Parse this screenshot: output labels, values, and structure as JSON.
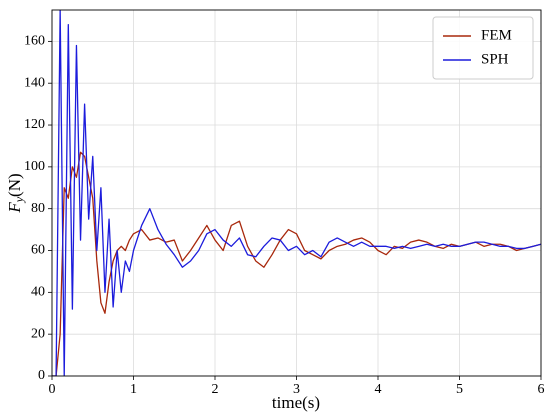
{
  "chart_data": {
    "type": "line",
    "x_label": "time(s)",
    "y_label": {
      "symbol": "F",
      "subscript": "y",
      "unit": "(N)"
    },
    "x": [
      0,
      0.05,
      0.1,
      0.15,
      0.2,
      0.25,
      0.3,
      0.35,
      0.4,
      0.45,
      0.5,
      0.55,
      0.6,
      0.65,
      0.7,
      0.75,
      0.8,
      0.85,
      0.9,
      0.95,
      1.0,
      1.1,
      1.2,
      1.3,
      1.4,
      1.5,
      1.6,
      1.7,
      1.8,
      1.9,
      2.0,
      2.1,
      2.2,
      2.3,
      2.4,
      2.5,
      2.6,
      2.7,
      2.8,
      2.9,
      3.0,
      3.1,
      3.2,
      3.3,
      3.4,
      3.5,
      3.6,
      3.7,
      3.8,
      3.9,
      4.0,
      4.1,
      4.2,
      4.3,
      4.4,
      4.5,
      4.6,
      4.7,
      4.8,
      4.9,
      5.0,
      5.1,
      5.2,
      5.3,
      5.4,
      5.5,
      5.6,
      5.7,
      5.8,
      5.9,
      6.0
    ],
    "series": [
      {
        "name": "FEM",
        "color": "#a8280c",
        "values": [
          0,
          0,
          20,
          90,
          85,
          100,
          95,
          107,
          105,
          95,
          85,
          55,
          35,
          30,
          45,
          55,
          60,
          62,
          60,
          65,
          68,
          70,
          65,
          66,
          64,
          65,
          55,
          60,
          66,
          72,
          65,
          60,
          72,
          74,
          62,
          55,
          52,
          58,
          65,
          70,
          68,
          60,
          58,
          56,
          60,
          62,
          63,
          65,
          66,
          64,
          60,
          58,
          62,
          61,
          64,
          65,
          64,
          62,
          61,
          63,
          62,
          63,
          64,
          62,
          63,
          63,
          62,
          60,
          61,
          62,
          63
        ]
      },
      {
        "name": "SPH",
        "color": "#1c1cdc",
        "values": [
          0,
          0,
          175,
          0,
          168,
          32,
          158,
          65,
          130,
          75,
          105,
          60,
          90,
          40,
          75,
          33,
          60,
          40,
          55,
          50,
          60,
          72,
          80,
          70,
          63,
          58,
          52,
          55,
          60,
          68,
          70,
          65,
          62,
          66,
          58,
          57,
          62,
          66,
          65,
          60,
          62,
          58,
          60,
          57,
          64,
          66,
          64,
          62,
          64,
          62,
          62,
          62,
          61,
          62,
          61,
          62,
          63,
          62,
          63,
          62,
          62,
          63,
          64,
          64,
          63,
          62,
          62,
          61,
          61,
          62,
          63
        ]
      }
    ],
    "xlim": [
      0,
      6
    ],
    "xticks": [
      0,
      1,
      2,
      3,
      4,
      5,
      6
    ],
    "ylim": [
      0,
      175
    ],
    "yticks": [
      0,
      20,
      40,
      60,
      80,
      100,
      120,
      140,
      160
    ],
    "grid": true,
    "legend": "upper-right"
  }
}
